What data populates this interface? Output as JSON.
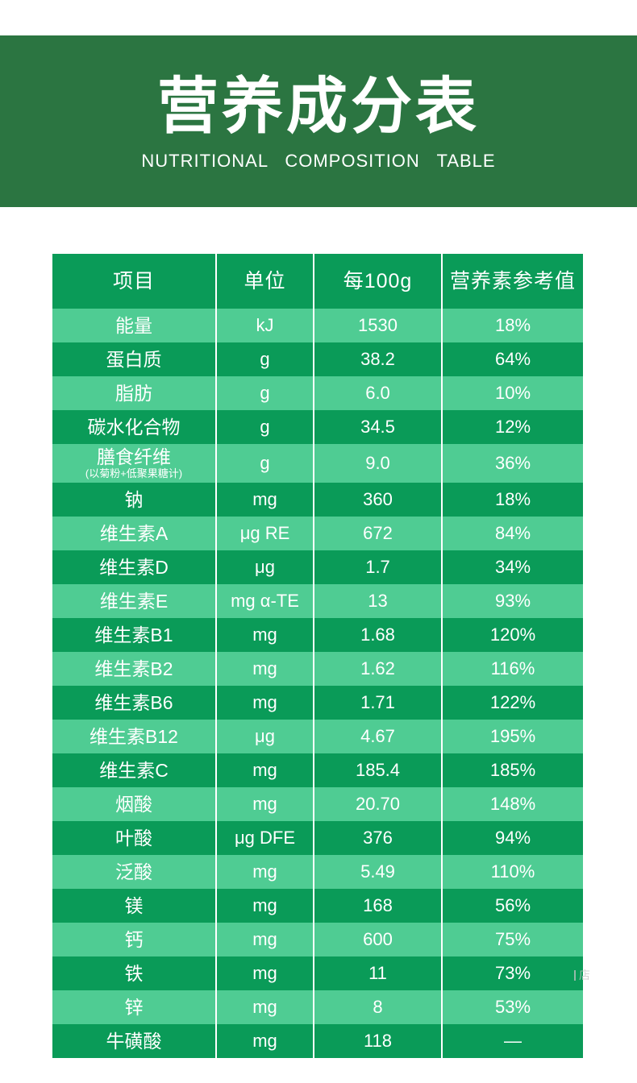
{
  "banner": {
    "title": "营养成分表",
    "subtitle": "NUTRITIONAL COMPOSITION TABLE",
    "background": "#2b7541",
    "text_color": "#ffffff"
  },
  "table": {
    "headers": [
      "项目",
      "单位",
      "每100g",
      "营养素参考值"
    ],
    "colors": {
      "header_bg": "#0a9b58",
      "row_dark": "#0a9b58",
      "row_light": "#4fcc93",
      "divider": "#ffffff",
      "text": "#ffffff"
    },
    "rows": [
      {
        "name": "能量",
        "unit": "kJ",
        "per100g": "1530",
        "nrv": "18%"
      },
      {
        "name": "蛋白质",
        "unit": "g",
        "per100g": "38.2",
        "nrv": "64%"
      },
      {
        "name": "脂肪",
        "unit": "g",
        "per100g": "6.0",
        "nrv": "10%"
      },
      {
        "name": "碳水化合物",
        "unit": "g",
        "per100g": "34.5",
        "nrv": "12%"
      },
      {
        "name": "膳食纤维",
        "sub": "(以菊粉+低聚果糖计)",
        "unit": "g",
        "per100g": "9.0",
        "nrv": "36%"
      },
      {
        "name": "钠",
        "unit": "mg",
        "per100g": "360",
        "nrv": "18%"
      },
      {
        "name": "维生素A",
        "unit": "μg RE",
        "per100g": "672",
        "nrv": "84%"
      },
      {
        "name": "维生素D",
        "unit": "μg",
        "per100g": "1.7",
        "nrv": "34%"
      },
      {
        "name": "维生素E",
        "unit": "mg α-TE",
        "per100g": "13",
        "nrv": "93%"
      },
      {
        "name": "维生素B1",
        "unit": "mg",
        "per100g": "1.68",
        "nrv": "120%"
      },
      {
        "name": "维生素B2",
        "unit": "mg",
        "per100g": "1.62",
        "nrv": "116%"
      },
      {
        "name": "维生素B6",
        "unit": "mg",
        "per100g": "1.71",
        "nrv": "122%"
      },
      {
        "name": "维生素B12",
        "unit": "μg",
        "per100g": "4.67",
        "nrv": "195%"
      },
      {
        "name": "维生素C",
        "unit": "mg",
        "per100g": "185.4",
        "nrv": "185%"
      },
      {
        "name": "烟酸",
        "unit": "mg",
        "per100g": "20.70",
        "nrv": "148%"
      },
      {
        "name": "叶酸",
        "unit": "μg DFE",
        "per100g": "376",
        "nrv": "94%"
      },
      {
        "name": "泛酸",
        "unit": "mg",
        "per100g": "5.49",
        "nrv": "110%"
      },
      {
        "name": "镁",
        "unit": "mg",
        "per100g": "168",
        "nrv": "56%"
      },
      {
        "name": "钙",
        "unit": "mg",
        "per100g": "600",
        "nrv": "75%"
      },
      {
        "name": "铁",
        "unit": "mg",
        "per100g": "11",
        "nrv": "73%"
      },
      {
        "name": "锌",
        "unit": "mg",
        "per100g": "8",
        "nrv": "53%"
      },
      {
        "name": "牛磺酸",
        "unit": "mg",
        "per100g": "118",
        "nrv": "—"
      }
    ]
  },
  "watermark": {
    "text": "店",
    "color": "#c4c4c4"
  }
}
